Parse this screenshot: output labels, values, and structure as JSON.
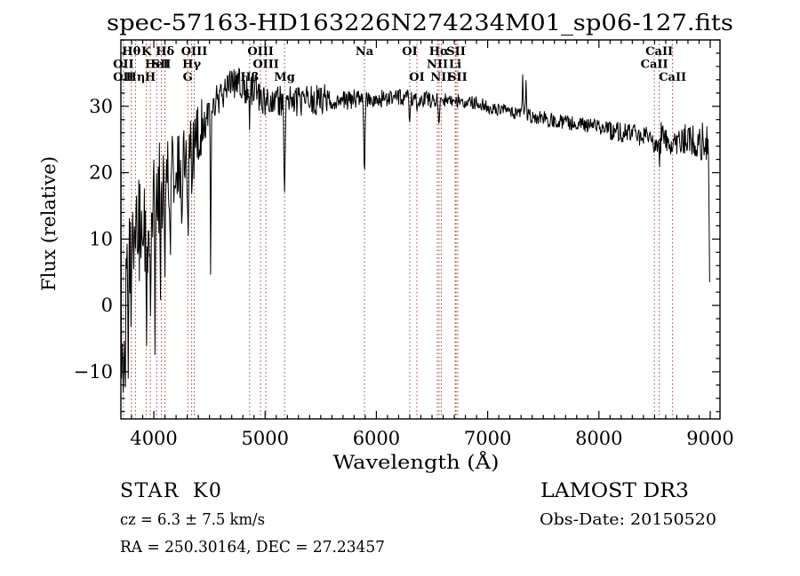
{
  "title": "spec-57163-HD163226N274234M01_sp06-127.fits",
  "annotations": {
    "class": "STAR",
    "subclass": "K0",
    "survey": "LAMOST DR3",
    "cz": "cz = 6.3 ± 7.5 km/s",
    "obs_date": "Obs-Date: 20150520",
    "ra_dec": "RA = 250.30164, DEC =  27.23457"
  },
  "chart_data": {
    "type": "line",
    "title": "spec-57163-HD163226N274234M01_sp06-127.fits",
    "xlabel": "Wavelength (Å)",
    "ylabel": "Flux (relative)",
    "x_range": [
      3704,
      9088
    ],
    "y_range": [
      -17.1,
      40
    ],
    "x_ticks": [
      4000,
      5000,
      6000,
      7000,
      8000,
      9000
    ],
    "x_tick_labels": [
      "4000",
      "5000",
      "6000",
      "7000",
      "8000",
      "9000"
    ],
    "x_minor_step": 100,
    "y_ticks": [
      -10,
      0,
      10,
      20,
      30
    ],
    "y_tick_labels": [
      "−10",
      "0",
      "10",
      "20",
      "30"
    ],
    "y_minor_step": 2,
    "grid": false,
    "legend": "none",
    "colors": {
      "trace": "#000000",
      "marker": "#aa3939",
      "text": "#000000",
      "background": "#ffffff"
    },
    "spectral_lines": [
      {
        "wl": 3727,
        "label": "OII",
        "row": 2
      },
      {
        "wl": 3727,
        "label": "OII",
        "row": 3
      },
      {
        "wl": 3798,
        "label": "Hθ",
        "row": 1
      },
      {
        "wl": 3835,
        "label": "Hη",
        "row": 3
      },
      {
        "wl": 3933,
        "label": "K",
        "row": 1
      },
      {
        "wl": 3968,
        "label": "H",
        "row": 3
      },
      {
        "wl": 4026,
        "label": "HeI",
        "row": 2
      },
      {
        "wl": 4068,
        "label": "SII",
        "row": 2
      },
      {
        "wl": 4101,
        "label": "Hδ",
        "row": 1
      },
      {
        "wl": 4305,
        "label": "G",
        "row": 3
      },
      {
        "wl": 4340,
        "label": "Hγ",
        "row": 2
      },
      {
        "wl": 4363,
        "label": "OIII",
        "row": 1
      },
      {
        "wl": 4861,
        "label": "Hβ",
        "row": 3
      },
      {
        "wl": 4959,
        "label": "OIII",
        "row": 1
      },
      {
        "wl": 5007,
        "label": "OIII",
        "row": 2
      },
      {
        "wl": 5175,
        "label": "Mg",
        "row": 3
      },
      {
        "wl": 5893,
        "label": "Na",
        "row": 1
      },
      {
        "wl": 6300,
        "label": "OI",
        "row": 1
      },
      {
        "wl": 6364,
        "label": "OI",
        "row": 3
      },
      {
        "wl": 6548,
        "label": "NII",
        "row": 2
      },
      {
        "wl": 6563,
        "label": "Hα",
        "row": 1
      },
      {
        "wl": 6583,
        "label": "NII",
        "row": 3
      },
      {
        "wl": 6708,
        "label": "Li",
        "row": 2
      },
      {
        "wl": 6716,
        "label": "SII",
        "row": 1
      },
      {
        "wl": 6731,
        "label": "SII",
        "row": 3
      },
      {
        "wl": 8498,
        "label": "CaII",
        "row": 2
      },
      {
        "wl": 8542,
        "label": "CaII",
        "row": 1
      },
      {
        "wl": 8662,
        "label": "CaII",
        "row": 3
      }
    ],
    "spectrum": {
      "sample_step": 5,
      "seed": 20150520,
      "continuum": [
        [
          3704,
          1
        ],
        [
          3740,
          0
        ],
        [
          3780,
          4
        ],
        [
          3830,
          9
        ],
        [
          3880,
          11
        ],
        [
          3930,
          9
        ],
        [
          3970,
          12
        ],
        [
          4030,
          16
        ],
        [
          4100,
          18.5
        ],
        [
          4200,
          21
        ],
        [
          4300,
          23
        ],
        [
          4400,
          26
        ],
        [
          4500,
          28.5
        ],
        [
          4600,
          32
        ],
        [
          4700,
          33.5
        ],
        [
          4800,
          33
        ],
        [
          4900,
          32.3
        ],
        [
          5000,
          30.8
        ],
        [
          5100,
          30.8
        ],
        [
          5300,
          30.8
        ],
        [
          5600,
          31
        ],
        [
          6000,
          31.2
        ],
        [
          6300,
          31.3
        ],
        [
          6600,
          31
        ],
        [
          6900,
          30.5
        ],
        [
          7100,
          29.5
        ],
        [
          7300,
          28.8
        ],
        [
          7500,
          28.2
        ],
        [
          7700,
          27.6
        ],
        [
          7900,
          27.2
        ],
        [
          8100,
          26.5
        ],
        [
          8300,
          25.8
        ],
        [
          8500,
          25.2
        ],
        [
          8700,
          24.9
        ],
        [
          8900,
          24.7
        ],
        [
          8996,
          24.4
        ]
      ],
      "features": [
        [
          3706,
          26,
          1.5
        ],
        [
          3709,
          -14,
          2
        ],
        [
          3725,
          -13,
          3
        ],
        [
          3745,
          -11,
          3
        ],
        [
          3772,
          -12,
          3
        ],
        [
          3800,
          -9,
          3
        ],
        [
          3850,
          -8,
          3
        ],
        [
          3900,
          -7,
          3
        ],
        [
          3933,
          -12,
          4
        ],
        [
          3968,
          -10,
          4
        ],
        [
          4010,
          -22,
          2
        ],
        [
          4060,
          -12,
          3
        ],
        [
          4101,
          -9,
          4
        ],
        [
          4150,
          -8,
          4
        ],
        [
          4250,
          -7,
          4
        ],
        [
          4305,
          -12,
          6
        ],
        [
          4340,
          -6,
          4
        ],
        [
          4363,
          -4,
          3
        ],
        [
          4511,
          -26,
          3.5
        ],
        [
          4861,
          -4,
          6
        ],
        [
          5175,
          -13,
          7
        ],
        [
          5893,
          -12,
          5
        ],
        [
          6300,
          -3,
          5
        ],
        [
          6364,
          -2.5,
          4
        ],
        [
          6563,
          -3.5,
          6
        ],
        [
          7315,
          5.5,
          4
        ],
        [
          7345,
          4.5,
          4
        ],
        [
          8498,
          -3,
          6
        ],
        [
          8542,
          -3.5,
          6
        ],
        [
          8662,
          -4,
          6
        ],
        [
          8994,
          -25,
          3
        ]
      ],
      "noise_segments": [
        [
          3704,
          3810,
          11
        ],
        [
          3810,
          3960,
          9
        ],
        [
          3960,
          4100,
          8
        ],
        [
          4100,
          4260,
          6
        ],
        [
          4260,
          4460,
          4.5
        ],
        [
          4460,
          4900,
          2.6
        ],
        [
          4900,
          5560,
          2.4
        ],
        [
          5560,
          5850,
          1.6
        ],
        [
          5850,
          6550,
          1.3
        ],
        [
          6550,
          7300,
          1.0
        ],
        [
          7300,
          8100,
          1.1
        ],
        [
          8100,
          8500,
          1.6
        ],
        [
          8500,
          8900,
          2.6
        ],
        [
          8900,
          8996,
          3.0
        ]
      ]
    }
  }
}
